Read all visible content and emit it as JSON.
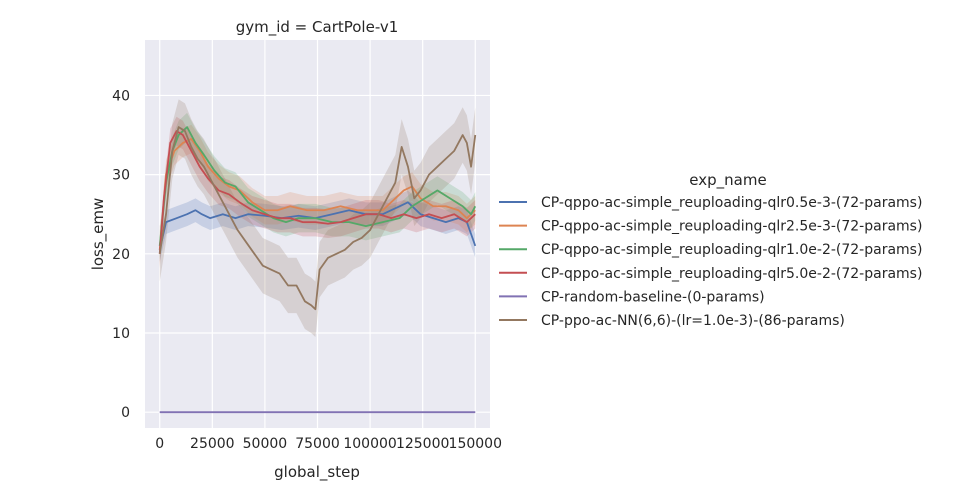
{
  "chart_data": {
    "type": "line",
    "title": "gym_id = CartPole-v1",
    "xlabel": "global_step",
    "ylabel": "loss_emw",
    "xlim": [
      -7000,
      157000
    ],
    "ylim": [
      -2,
      47
    ],
    "xticks": [
      0,
      25000,
      50000,
      75000,
      100000,
      125000,
      150000
    ],
    "xtick_labels": [
      "0",
      "25000",
      "50000",
      "75000",
      "100000",
      "125000",
      "150000"
    ],
    "yticks": [
      0,
      10,
      20,
      30,
      40
    ],
    "ytick_labels": [
      "0",
      "10",
      "20",
      "30",
      "40"
    ],
    "grid": true,
    "legend": {
      "title": "exp_name",
      "placement": "right-outside"
    },
    "series": [
      {
        "name": "CP-qppo-ac-simple_reuploading-qlr0.5e-3-(72-params)",
        "color": "#4c72b0",
        "points": [
          [
            0,
            20.5
          ],
          [
            3000,
            24
          ],
          [
            8000,
            24.5
          ],
          [
            13000,
            25
          ],
          [
            17000,
            25.5
          ],
          [
            20000,
            25
          ],
          [
            24000,
            24.5
          ],
          [
            30000,
            25
          ],
          [
            36000,
            24.5
          ],
          [
            42000,
            25
          ],
          [
            50000,
            24.8
          ],
          [
            58000,
            24.5
          ],
          [
            66000,
            24.8
          ],
          [
            74000,
            24.5
          ],
          [
            82000,
            25
          ],
          [
            90000,
            25.5
          ],
          [
            98000,
            25
          ],
          [
            106000,
            25
          ],
          [
            114000,
            26
          ],
          [
            118000,
            26.5
          ],
          [
            124000,
            25
          ],
          [
            130000,
            24.5
          ],
          [
            136000,
            24
          ],
          [
            142000,
            24.5
          ],
          [
            146000,
            24
          ],
          [
            150000,
            21
          ]
        ],
        "band": 1.5
      },
      {
        "name": "CP-qppo-ac-simple_reuploading-qlr2.5e-3-(72-params)",
        "color": "#dd8452",
        "points": [
          [
            0,
            20.5
          ],
          [
            3000,
            30
          ],
          [
            7000,
            33
          ],
          [
            11000,
            34
          ],
          [
            15000,
            34.5
          ],
          [
            19000,
            33
          ],
          [
            23000,
            31
          ],
          [
            28000,
            29.5
          ],
          [
            33000,
            28.5
          ],
          [
            38000,
            28
          ],
          [
            44000,
            26.5
          ],
          [
            50000,
            25.5
          ],
          [
            56000,
            25.5
          ],
          [
            62000,
            26
          ],
          [
            70000,
            25.5
          ],
          [
            78000,
            25.5
          ],
          [
            86000,
            26
          ],
          [
            94000,
            25.5
          ],
          [
            100000,
            25.5
          ],
          [
            106000,
            25.5
          ],
          [
            110000,
            26.5
          ],
          [
            116000,
            28
          ],
          [
            120000,
            28.5
          ],
          [
            124000,
            27
          ],
          [
            130000,
            26
          ],
          [
            136000,
            26
          ],
          [
            142000,
            25.5
          ],
          [
            146000,
            24.5
          ],
          [
            150000,
            25.5
          ]
        ],
        "band": 1.8
      },
      {
        "name": "CP-qppo-ac-simple_reuploading-qlr1.0e-2-(72-params)",
        "color": "#55a868",
        "points": [
          [
            0,
            21
          ],
          [
            3000,
            29
          ],
          [
            6000,
            33
          ],
          [
            9000,
            35
          ],
          [
            13000,
            36
          ],
          [
            17000,
            34
          ],
          [
            21000,
            32.5
          ],
          [
            26000,
            30.5
          ],
          [
            31000,
            29
          ],
          [
            36000,
            28.5
          ],
          [
            42000,
            26.5
          ],
          [
            48000,
            25.5
          ],
          [
            54000,
            24.5
          ],
          [
            60000,
            24
          ],
          [
            66000,
            24.5
          ],
          [
            74000,
            24.5
          ],
          [
            82000,
            24
          ],
          [
            90000,
            24
          ],
          [
            98000,
            23.5
          ],
          [
            106000,
            24
          ],
          [
            114000,
            24.5
          ],
          [
            120000,
            26
          ],
          [
            126000,
            27
          ],
          [
            132000,
            28
          ],
          [
            138000,
            27
          ],
          [
            144000,
            26
          ],
          [
            148000,
            25
          ],
          [
            150000,
            26
          ]
        ],
        "band": 1.8
      },
      {
        "name": "CP-qppo-ac-simple_reuploading-qlr5.0e-2-(72-params)",
        "color": "#c44e52",
        "points": [
          [
            0,
            20
          ],
          [
            2000,
            27
          ],
          [
            5000,
            34
          ],
          [
            8000,
            35.5
          ],
          [
            11000,
            35
          ],
          [
            15000,
            33
          ],
          [
            19000,
            31
          ],
          [
            23000,
            29.5
          ],
          [
            28000,
            28
          ],
          [
            33000,
            27.5
          ],
          [
            38000,
            26.5
          ],
          [
            44000,
            25.5
          ],
          [
            50000,
            25
          ],
          [
            56000,
            24.5
          ],
          [
            62000,
            24.5
          ],
          [
            68000,
            24
          ],
          [
            74000,
            24
          ],
          [
            80000,
            23.8
          ],
          [
            86000,
            24
          ],
          [
            92000,
            24.5
          ],
          [
            98000,
            25
          ],
          [
            104000,
            25
          ],
          [
            110000,
            24.5
          ],
          [
            116000,
            25
          ],
          [
            122000,
            24.5
          ],
          [
            128000,
            25
          ],
          [
            134000,
            24.5
          ],
          [
            140000,
            25
          ],
          [
            146000,
            24
          ],
          [
            150000,
            25
          ]
        ],
        "band": 1.8
      },
      {
        "name": "CP-random-baseline-(0-params)",
        "color": "#8172b3",
        "points": [
          [
            0,
            0
          ],
          [
            150000,
            0
          ]
        ],
        "band": 0
      },
      {
        "name": "CP-ppo-ac-NN(6,6)-(lr=1.0e-3)-(86-params)",
        "color": "#937860",
        "points": [
          [
            0,
            20
          ],
          [
            3000,
            25
          ],
          [
            6000,
            33
          ],
          [
            9000,
            36
          ],
          [
            12000,
            35.5
          ],
          [
            15000,
            33.5
          ],
          [
            18000,
            32
          ],
          [
            21000,
            31
          ],
          [
            25000,
            29
          ],
          [
            29000,
            27
          ],
          [
            33000,
            25
          ],
          [
            37000,
            23
          ],
          [
            41000,
            21.5
          ],
          [
            45000,
            20
          ],
          [
            49000,
            18.5
          ],
          [
            53000,
            18
          ],
          [
            57000,
            17.5
          ],
          [
            61000,
            16
          ],
          [
            65000,
            16
          ],
          [
            69000,
            14
          ],
          [
            72000,
            13.5
          ],
          [
            74000,
            13
          ],
          [
            76000,
            18
          ],
          [
            80000,
            19.5
          ],
          [
            84000,
            20
          ],
          [
            88000,
            20.5
          ],
          [
            92000,
            21.5
          ],
          [
            96000,
            22
          ],
          [
            100000,
            23
          ],
          [
            104000,
            25
          ],
          [
            108000,
            27
          ],
          [
            112000,
            29
          ],
          [
            115000,
            33.5
          ],
          [
            118000,
            31
          ],
          [
            121000,
            27
          ],
          [
            124000,
            28
          ],
          [
            128000,
            30
          ],
          [
            132000,
            31
          ],
          [
            136000,
            32
          ],
          [
            140000,
            33
          ],
          [
            144000,
            35
          ],
          [
            146000,
            34
          ],
          [
            148000,
            31
          ],
          [
            150000,
            35
          ]
        ],
        "band": 3.5
      }
    ]
  }
}
